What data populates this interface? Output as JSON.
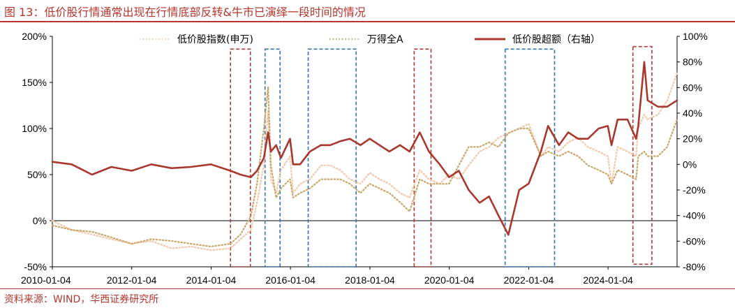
{
  "title": "图 13：低价股行情通常出现在行情底部反转&牛市已演绎一段时间的情况",
  "source": "资料来源：WIND，华西证券研究所",
  "colors": {
    "low_price_index": "#f3c7a8",
    "wind_all_a": "#c8a86a",
    "excess": "#a8382d",
    "red_box": "#b13a32",
    "blue_box": "#2f75b6",
    "title": "#b5362c"
  },
  "chart_data": {
    "type": "line",
    "xlabel": "",
    "ylabel": "",
    "x_ticks": [
      "2010-01-04",
      "2012-01-04",
      "2014-01-04",
      "2016-01-04",
      "2018-01-04",
      "2020-01-04",
      "2022-01-04",
      "2024-01-04"
    ],
    "xlim": [
      "2010-01-04",
      "2025-09-30"
    ],
    "y_left": {
      "range": [
        -50,
        200
      ],
      "ticks": [
        "-50%",
        "0%",
        "50%",
        "100%",
        "150%",
        "200%"
      ]
    },
    "y_right": {
      "range": [
        -80,
        100
      ],
      "ticks": [
        "-80%",
        "-60%",
        "-40%",
        "-20%",
        "0%",
        "20%",
        "40%",
        "60%",
        "80%",
        "100%"
      ]
    },
    "legend": {
      "placement": "top"
    },
    "x_dates": [
      "2010-01-04",
      "2010-07-01",
      "2011-01-04",
      "2011-07-01",
      "2012-01-04",
      "2012-07-02",
      "2013-01-04",
      "2013-07-01",
      "2014-01-02",
      "2014-07-01",
      "2014-10-01",
      "2015-01-05",
      "2015-03-02",
      "2015-05-04",
      "2015-06-12",
      "2015-07-08",
      "2015-08-25",
      "2015-10-08",
      "2015-12-31",
      "2016-01-28",
      "2016-04-01",
      "2016-07-01",
      "2016-10-10",
      "2017-01-03",
      "2017-04-05",
      "2017-07-03",
      "2017-10-09",
      "2018-01-02",
      "2018-04-02",
      "2018-07-02",
      "2018-10-08",
      "2019-01-04",
      "2019-04-08",
      "2019-07-01",
      "2019-10-08",
      "2020-01-02",
      "2020-04-01",
      "2020-07-01",
      "2020-10-09",
      "2021-01-04",
      "2021-04-01",
      "2021-07-01",
      "2021-10-08",
      "2022-01-04",
      "2022-04-26",
      "2022-07-01",
      "2022-10-10",
      "2023-01-03",
      "2023-04-03",
      "2023-07-03",
      "2023-10-09",
      "2024-01-02",
      "2024-02-05",
      "2024-04-01",
      "2024-07-01",
      "2024-09-18",
      "2024-10-08",
      "2024-12-02",
      "2025-01-02",
      "2025-04-07",
      "2025-07-01",
      "2025-09-30"
    ],
    "series": [
      {
        "name": "低价股指数(申万)",
        "axis": "left",
        "style": "dotted",
        "values": [
          0,
          -10,
          -15,
          -20,
          -25,
          -22,
          -30,
          -28,
          -32,
          -30,
          -20,
          -10,
          20,
          60,
          120,
          45,
          30,
          55,
          70,
          30,
          40,
          45,
          60,
          60,
          55,
          45,
          40,
          52,
          45,
          40,
          30,
          25,
          55,
          45,
          40,
          50,
          45,
          60,
          75,
          80,
          90,
          95,
          100,
          105,
          70,
          80,
          75,
          85,
          90,
          80,
          75,
          70,
          40,
          80,
          75,
          70,
          100,
          115,
          110,
          115,
          130,
          160
        ]
      },
      {
        "name": "万得全A",
        "axis": "left",
        "style": "dotted",
        "values": [
          -5,
          -10,
          -12,
          -18,
          -25,
          -20,
          -22,
          -25,
          -28,
          -25,
          -15,
          5,
          40,
          100,
          145,
          60,
          25,
          35,
          45,
          25,
          30,
          35,
          45,
          45,
          45,
          40,
          30,
          40,
          35,
          30,
          20,
          10,
          45,
          40,
          40,
          40,
          60,
          80,
          80,
          85,
          80,
          95,
          100,
          100,
          70,
          75,
          70,
          75,
          70,
          60,
          55,
          50,
          40,
          55,
          50,
          45,
          70,
          75,
          70,
          70,
          80,
          110
        ]
      },
      {
        "name": "低价股超额（右轴）",
        "axis": "right",
        "style": "solid",
        "values": [
          2,
          0,
          -8,
          -2,
          -5,
          0,
          -3,
          -2,
          0,
          -5,
          -8,
          -10,
          -5,
          5,
          25,
          10,
          15,
          5,
          20,
          0,
          0,
          10,
          15,
          15,
          18,
          20,
          15,
          20,
          15,
          10,
          15,
          10,
          25,
          10,
          0,
          -10,
          -5,
          -20,
          -30,
          -25,
          -40,
          -55,
          -20,
          -15,
          10,
          30,
          15,
          25,
          20,
          20,
          28,
          30,
          15,
          35,
          35,
          20,
          30,
          80,
          50,
          45,
          45,
          50
        ]
      }
    ],
    "highlight_boxes": [
      {
        "color": "red",
        "start": "2014-07-01",
        "end": "2014-12-31",
        "y_top_pct": 90,
        "y_bottom_pct": -80
      },
      {
        "color": "blue",
        "start": "2015-05-15",
        "end": "2015-09-30",
        "y_top_pct": 90,
        "y_bottom_pct": -80
      },
      {
        "color": "blue",
        "start": "2016-06-15",
        "end": "2017-08-30",
        "y_top_pct": 90,
        "y_bottom_pct": -80
      },
      {
        "color": "red",
        "start": "2019-02-15",
        "end": "2019-07-20",
        "y_top_pct": 90,
        "y_bottom_pct": -80
      },
      {
        "color": "blue",
        "start": "2021-06-01",
        "end": "2022-08-30",
        "y_top_pct": 90,
        "y_bottom_pct": -80
      },
      {
        "color": "red",
        "start": "2024-08-20",
        "end": "2025-02-10",
        "y_top_pct": 92,
        "y_bottom_pct": -78
      }
    ]
  }
}
